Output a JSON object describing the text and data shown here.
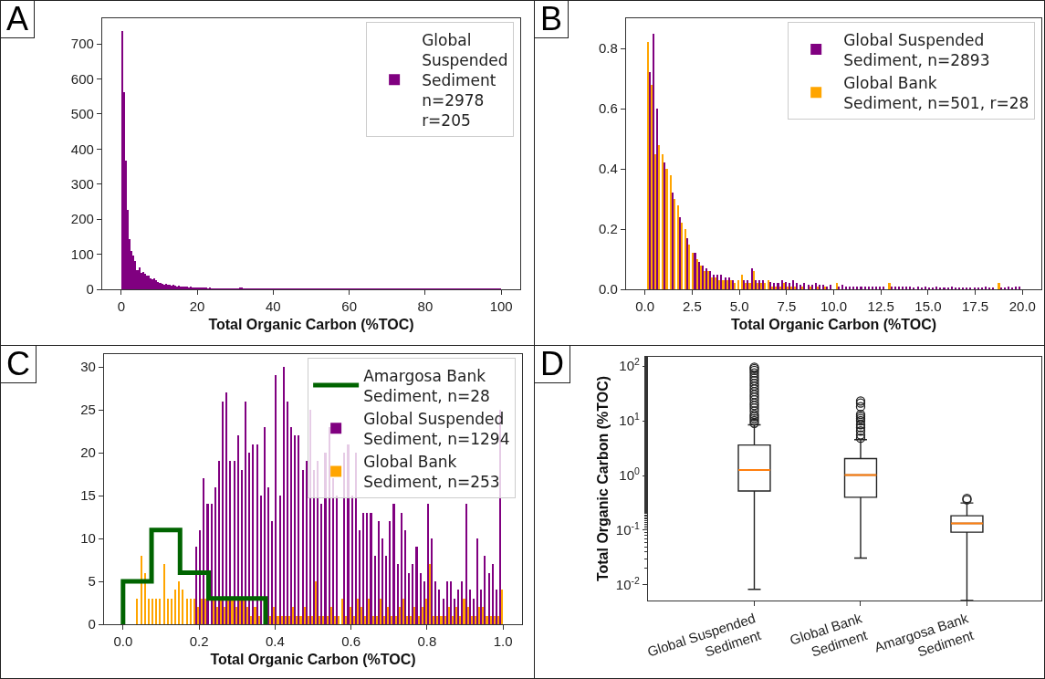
{
  "chart_data": [
    {
      "type": "histogram",
      "title": "A",
      "xlabel": "Total Organic Carbon (%TOC)",
      "xlim": [
        -5,
        105
      ],
      "xticks": [
        0,
        20,
        40,
        60,
        80,
        100
      ],
      "ylim": [
        0,
        773
      ],
      "yticks": [
        0,
        100,
        200,
        300,
        400,
        500,
        600,
        700
      ],
      "grid": false,
      "legend": "top right",
      "bins": [
        0,
        0.5,
        1,
        1.5,
        2,
        2.5,
        3,
        3.5,
        4,
        4.5,
        5,
        5.5,
        6,
        6.5,
        7,
        7.5,
        8,
        8.5,
        9,
        9.5,
        10,
        10.5,
        11,
        11.5,
        12,
        12.5,
        13,
        13.5,
        14,
        14.5,
        15,
        15.5,
        16,
        16.5,
        17,
        17.5,
        18,
        18.5,
        19,
        19.5,
        20,
        20.5,
        21,
        21.5,
        22,
        22.5,
        23,
        23.5,
        24,
        24.5,
        25,
        25.5,
        26,
        26.5,
        27,
        27.5,
        28,
        28.5,
        29,
        29.5,
        30,
        31,
        32,
        33,
        34,
        35,
        36,
        37,
        38,
        39,
        40,
        41,
        42,
        43,
        44,
        45,
        46,
        47,
        48,
        49,
        50,
        51,
        52,
        53,
        54,
        55,
        56,
        57,
        58,
        59,
        60,
        61,
        62,
        63,
        64,
        65,
        66,
        67,
        68,
        69,
        70,
        71,
        72,
        73,
        74,
        75,
        76,
        77,
        78,
        79,
        80,
        81,
        82,
        83,
        84,
        85,
        86,
        87,
        88,
        89,
        90,
        91,
        92,
        93,
        94,
        95,
        96,
        97,
        98,
        99,
        100
      ],
      "series": [
        {
          "name": "Global\nSuspended\nSediment\nn=2978\nr=205",
          "color": "#800080",
          "values": [
            736,
            561,
            368,
            226,
            144,
            110,
            97,
            80,
            55,
            62,
            48,
            50,
            45,
            38,
            40,
            32,
            28,
            30,
            25,
            22,
            18,
            16,
            14,
            15,
            12,
            13,
            11,
            12,
            10,
            9,
            11,
            8,
            9,
            7,
            8,
            6,
            7,
            5,
            6,
            5,
            6,
            4,
            3,
            4,
            3,
            2,
            3,
            2,
            2,
            2,
            1,
            2,
            1,
            2,
            1,
            1,
            2,
            1,
            1,
            2,
            2,
            3,
            2,
            1,
            2,
            1,
            1,
            2,
            1,
            1,
            1,
            1,
            1,
            1,
            1,
            1,
            1,
            1,
            1,
            1,
            1,
            1,
            1,
            1,
            1,
            1,
            1,
            1,
            1,
            1,
            1,
            1,
            1,
            1,
            1,
            1,
            1,
            1,
            1,
            1,
            1,
            1,
            1,
            1,
            1,
            1,
            1,
            1,
            1,
            1,
            1,
            1,
            1,
            1,
            1,
            1,
            1,
            1,
            1,
            1,
            1,
            1,
            1,
            1,
            1,
            1,
            1,
            1,
            1,
            1
          ]
        }
      ]
    },
    {
      "type": "histogram",
      "title": "B",
      "xlabel": "Total Organic Carbon (%TOC)",
      "xlim": [
        -1,
        21
      ],
      "xticks": [
        {
          "value": 0,
          "label": "0.0"
        },
        2.5,
        {
          "value": 5,
          "label": "5.0"
        },
        7.5,
        {
          "value": 10,
          "label": "10.0"
        },
        12.5,
        {
          "value": 15,
          "label": "15.0"
        },
        17.5,
        {
          "value": 20,
          "label": "20.0"
        }
      ],
      "ylim": [
        0,
        0.9
      ],
      "yticks": [
        {
          "value": 0,
          "label": "0.0"
        },
        0.2,
        0.4,
        0.6,
        0.8
      ],
      "grid": false,
      "legend": "top right",
      "bins": [
        0,
        0.2,
        0.4,
        0.6,
        0.8,
        1,
        1.2,
        1.4,
        1.6,
        1.8,
        2,
        2.2,
        2.4,
        2.6,
        2.8,
        3,
        3.2,
        3.4,
        3.6,
        3.8,
        4,
        4.2,
        4.4,
        4.6,
        4.8,
        5,
        5.2,
        5.4,
        5.6,
        5.8,
        6,
        6.2,
        6.4,
        6.6,
        6.8,
        7,
        7.2,
        7.4,
        7.6,
        7.8,
        8,
        8.2,
        8.4,
        8.6,
        8.8,
        9,
        9.2,
        9.4,
        9.6,
        9.8,
        10,
        10.2,
        10.4,
        10.6,
        10.8,
        11,
        11.2,
        11.4,
        11.6,
        11.8,
        12,
        12.2,
        12.4,
        12.6,
        12.8,
        13,
        13.2,
        13.4,
        13.6,
        13.8,
        14,
        14.2,
        14.4,
        14.6,
        14.8,
        15,
        15.2,
        15.4,
        15.6,
        15.8,
        16,
        16.2,
        16.4,
        16.6,
        16.8,
        17,
        17.2,
        17.4,
        17.6,
        17.8,
        18,
        18.2,
        18.4,
        18.6,
        18.8,
        19,
        19.2,
        19.4,
        19.6,
        19.8,
        20
      ],
      "series": [
        {
          "name": "Global Suspended\nSediment, n=2893",
          "color": "#800080",
          "values": [
            null,
            0.72,
            0.85,
            0.6,
            null,
            0.42,
            null,
            0.32,
            null,
            0.24,
            null,
            0.17,
            null,
            0.12,
            0.09,
            0.08,
            0.07,
            0.06,
            0.05,
            0.05,
            0.05,
            0.04,
            0.04,
            0.03,
            null,
            null,
            0.03,
            0.03,
            0.07,
            0.03,
            0.03,
            0.03,
            null,
            0.025,
            0.02,
            0.02,
            0.03,
            0.025,
            0.02,
            0.03,
            0.02,
            0.015,
            0.02,
            0.015,
            0.015,
            0.02,
            0.015,
            0.015,
            0.01,
            0.015,
            null,
            0.01,
            0.015,
            0.01,
            0.01,
            0.01,
            0.01,
            0.01,
            0.01,
            0.01,
            0.01,
            0.01,
            0.01,
            0.01,
            null,
            0.01,
            0.01,
            0.01,
            0.01,
            0.01,
            0.01,
            0.005,
            0.01,
            0.005,
            0.01,
            0.005,
            0.005,
            0.01,
            0.005,
            0.005,
            0.005,
            0.01,
            0.005,
            0.005,
            0.005,
            0.005,
            0.005,
            0.005,
            0.005,
            0.005,
            0.01,
            0.005,
            0.005,
            null,
            0.005,
            0.005,
            0.01,
            0.005,
            0.01,
            0.01
          ]
        },
        {
          "name": "Global Bank\nSediment, n=501, r=28",
          "color": "#ffa500",
          "values": [
            0.82,
            0.68,
            0.45,
            0.48,
            0.45,
            0.4,
            0.38,
            0.3,
            0.28,
            0.22,
            0.2,
            0.15,
            0.12,
            0.1,
            0.08,
            0.06,
            0.06,
            0.04,
            0.04,
            0.03,
            0.03,
            0.03,
            0.03,
            0.02,
            0.03,
            0.05,
            0.02,
            0.02,
            0.06,
            0.02,
            0.02,
            0.02,
            0.03,
            0.01,
            0.01,
            0.01,
            0.02,
            0.01,
            0.01,
            0.01,
            0,
            0.01,
            0,
            0.01,
            0,
            0.01,
            0,
            0.01,
            0,
            0,
            0.02,
            0,
            0,
            0,
            0,
            0,
            0,
            0,
            0,
            0,
            0,
            0,
            0,
            0,
            0.02,
            0,
            0,
            0,
            0,
            0,
            0,
            0,
            0,
            0,
            0,
            0,
            0,
            0,
            0,
            0,
            0,
            0,
            0,
            0,
            0,
            0,
            0,
            0,
            0,
            0,
            0,
            0,
            0,
            0.02,
            0,
            0,
            0,
            0,
            0,
            0
          ]
        }
      ]
    },
    {
      "type": "histogram",
      "title": "C",
      "xlabel": "Total Organic Carbon (%TOC)",
      "xlim": [
        -0.05,
        1.05
      ],
      "xticks": [
        {
          "value": 0,
          "label": "0.0"
        },
        0.2,
        0.4,
        0.6,
        0.8,
        {
          "value": 1,
          "label": "1.0"
        }
      ],
      "ylim": [
        0,
        31.5
      ],
      "yticks": [
        0,
        5,
        10,
        15,
        20,
        25,
        30
      ],
      "grid": false,
      "legend": "top right",
      "bins": [
        0,
        0.01,
        0.02,
        0.03,
        0.04,
        0.05,
        0.06,
        0.07,
        0.08,
        0.09,
        0.1,
        0.11,
        0.12,
        0.13,
        0.14,
        0.15,
        0.16,
        0.17,
        0.18,
        0.19,
        0.2,
        0.21,
        0.22,
        0.23,
        0.24,
        0.25,
        0.26,
        0.27,
        0.28,
        0.29,
        0.3,
        0.31,
        0.32,
        0.33,
        0.34,
        0.35,
        0.36,
        0.37,
        0.38,
        0.39,
        0.4,
        0.41,
        0.42,
        0.43,
        0.44,
        0.45,
        0.46,
        0.47,
        0.48,
        0.49,
        0.5,
        0.51,
        0.52,
        0.53,
        0.54,
        0.55,
        0.56,
        0.57,
        0.58,
        0.59,
        0.6,
        0.61,
        0.62,
        0.63,
        0.64,
        0.65,
        0.66,
        0.67,
        0.68,
        0.69,
        0.7,
        0.71,
        0.72,
        0.73,
        0.74,
        0.75,
        0.76,
        0.77,
        0.78,
        0.79,
        0.8,
        0.81,
        0.82,
        0.83,
        0.84,
        0.85,
        0.86,
        0.87,
        0.88,
        0.89,
        0.9,
        0.91,
        0.92,
        0.93,
        0.94,
        0.95,
        0.96,
        0.97,
        0.98,
        0.99,
        1
      ],
      "series": [
        {
          "name": "Amargosa Bank\nSediment, n=28",
          "type": "step",
          "color": "#006400",
          "x": [
            0,
            0,
            0.075,
            0.15,
            0.225,
            0.3,
            0.375
          ],
          "values": [
            0,
            5,
            11,
            6,
            3,
            3,
            0
          ]
        },
        {
          "name": "Global Suspended\nSediment, n=1294",
          "color": "#800080",
          "values": [
            null,
            0,
            0,
            0,
            0,
            0,
            0,
            0,
            null,
            null,
            null,
            null,
            null,
            null,
            null,
            null,
            null,
            null,
            null,
            9,
            11,
            17,
            14,
            14,
            16,
            19,
            26,
            27,
            19,
            19,
            22,
            18,
            26,
            20,
            21,
            21,
            15,
            23,
            16,
            12,
            29,
            15,
            30,
            26,
            23,
            22,
            22,
            18,
            19,
            25,
            18,
            19,
            14,
            20,
            23,
            17,
            15,
            null,
            20,
            21,
            15,
            20,
            11,
            13,
            13,
            13,
            8,
            12,
            10,
            8,
            12,
            14,
            7,
            13,
            11,
            6,
            7,
            9,
            6,
            5,
            14,
            10,
            5,
            4,
            3,
            5,
            5,
            3,
            4,
            5,
            14,
            4,
            3,
            10,
            4,
            8,
            6,
            7,
            4,
            25
          ]
        },
        {
          "name": "Global Bank\nSediment, n=253",
          "color": "#ffa500",
          "values": [
            0,
            0,
            0,
            3,
            8,
            6,
            3,
            3,
            3,
            3,
            7,
            3,
            3,
            4,
            5,
            4,
            3,
            3,
            3,
            2,
            3,
            3,
            null,
            3,
            2,
            3,
            2,
            3,
            3,
            2,
            3,
            3,
            2,
            1,
            2,
            1,
            null,
            null,
            1,
            2,
            1,
            1,
            1,
            1,
            2,
            1,
            1,
            2,
            1,
            1,
            5,
            1,
            1,
            1,
            2,
            1,
            1,
            3,
            1,
            2,
            1,
            3,
            2,
            1,
            3,
            1,
            1,
            3,
            1,
            2,
            1,
            1,
            2,
            3,
            1,
            1,
            2,
            1,
            2,
            3,
            7,
            1,
            1,
            1,
            1,
            2,
            1,
            2,
            1,
            3,
            2,
            1,
            1,
            2,
            2,
            1,
            1,
            1,
            1,
            4
          ]
        }
      ]
    },
    {
      "type": "box",
      "title": "D",
      "ylabel": "Total Organic Carbon (%TOC)",
      "log": true,
      "ylim": [
        0.0052,
        147
      ],
      "yticks": [
        {
          "value": 0.01,
          "label": "10$^{-2}$"
        },
        {
          "value": 0.1,
          "label": "10$^{-1}$"
        },
        {
          "value": 1,
          "label": "10$^{0}$"
        },
        {
          "value": 10,
          "label": "10$^{1}$"
        },
        {
          "value": 100,
          "label": "10$^{2}$"
        }
      ],
      "grid": false,
      "legend": false,
      "categories": [
        "Global Suspended\nSediment",
        "Global Bank\nSediment",
        "Amargosa Bank\nSediment"
      ],
      "boxes": [
        {
          "low": 0.0083,
          "q1": 0.52,
          "median": 1.26,
          "q3": 3.6,
          "high": 8.4,
          "outliers": [
            9,
            10,
            11,
            12,
            13,
            15,
            17,
            19,
            21,
            24,
            27,
            30,
            34,
            38,
            43,
            48,
            54,
            60,
            67,
            75,
            83,
            90,
            95
          ]
        },
        {
          "low": 0.031,
          "q1": 0.4,
          "median": 1.02,
          "q3": 2.03,
          "high": 4.5,
          "outliers": [
            4.8,
            5.5,
            6.5,
            7.5,
            8.5,
            10,
            11,
            12,
            13,
            18,
            21,
            23
          ]
        },
        {
          "low": 0.0052,
          "q1": 0.092,
          "median": 0.133,
          "q3": 0.184,
          "high": 0.315,
          "outliers": [
            0.36,
            0.38
          ]
        }
      ]
    }
  ]
}
